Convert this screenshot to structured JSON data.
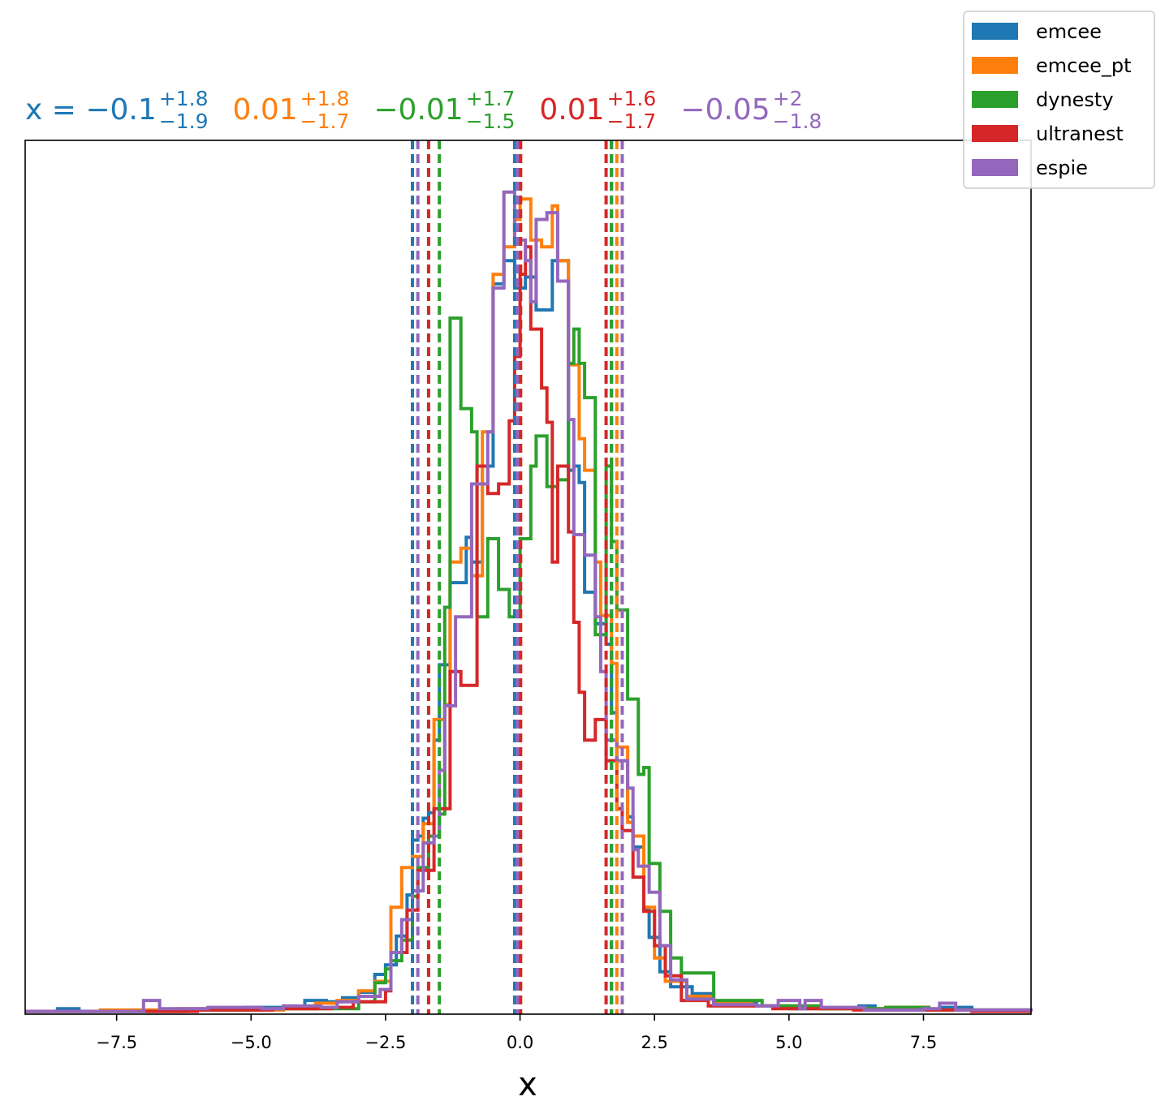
{
  "chart_data": {
    "type": "histogram",
    "xlabel": "x",
    "ylabel": "",
    "xlim": [
      -9.2,
      9.5
    ],
    "xticks": [
      -7.5,
      -5.0,
      -2.5,
      0.0,
      2.5,
      5.0,
      7.5
    ],
    "xtick_labels": [
      "−7.5",
      "−5.0",
      "−2.5",
      "0.0",
      "2.5",
      "5.0",
      "7.5"
    ],
    "y_ticks_shown": false,
    "grid": false,
    "legend_position": "top-right",
    "summary": [
      {
        "series": "emcee",
        "prefix": "x = ",
        "median": "−0.1",
        "plus": "+1.8",
        "minus": "−1.9"
      },
      {
        "series": "emcee_pt",
        "prefix": "",
        "median": "0.01",
        "plus": "+1.8",
        "minus": "−1.7"
      },
      {
        "series": "dynesty",
        "prefix": "",
        "median": "−0.01",
        "plus": "+1.7",
        "minus": "−1.5"
      },
      {
        "series": "ultranest",
        "prefix": "",
        "median": "0.01",
        "plus": "+1.6",
        "minus": "−1.7"
      },
      {
        "series": "espie",
        "prefix": "",
        "median": "−0.05",
        "plus": "+2",
        "minus": "−1.8"
      }
    ],
    "series": [
      {
        "name": "emcee",
        "color": "#1f77b4",
        "quantile_lines": [
          -2.0,
          -0.1,
          1.7
        ],
        "steps": [
          [
            -9.2,
            0.2
          ],
          [
            -8.6,
            0.4
          ],
          [
            -8.2,
            0.2
          ],
          [
            -6.3,
            0.3
          ],
          [
            -5.1,
            0.5
          ],
          [
            -4.0,
            1.0
          ],
          [
            -3.6,
            0.9
          ],
          [
            -3.3,
            1.2
          ],
          [
            -3.0,
            1.6
          ],
          [
            -2.7,
            2.9
          ],
          [
            -2.5,
            3.6
          ],
          [
            -2.3,
            5.7
          ],
          [
            -2.1,
            8.7
          ],
          [
            -2.0,
            12.7
          ],
          [
            -1.9,
            13.0
          ],
          [
            -1.8,
            14.3
          ],
          [
            -1.7,
            14.7
          ],
          [
            -1.6,
            20.0
          ],
          [
            -1.5,
            25.5
          ],
          [
            -1.3,
            31.5
          ],
          [
            -1.0,
            34.8
          ],
          [
            -0.9,
            33.0
          ],
          [
            -0.7,
            40.0
          ],
          [
            -0.5,
            53.3
          ],
          [
            -0.3,
            55.0
          ],
          [
            -0.1,
            53.0
          ],
          [
            0.1,
            53.8
          ],
          [
            0.3,
            51.4
          ],
          [
            0.6,
            55.0
          ],
          [
            0.9,
            39.7
          ],
          [
            1.0,
            40.0
          ],
          [
            1.1,
            38.8
          ],
          [
            1.2,
            30.8
          ],
          [
            1.4,
            28.5
          ],
          [
            1.6,
            27.0
          ],
          [
            1.7,
            22.0
          ],
          [
            1.8,
            18.5
          ],
          [
            2.0,
            14.4
          ],
          [
            2.1,
            12.2
          ],
          [
            2.3,
            7.6
          ],
          [
            2.4,
            5.6
          ],
          [
            2.6,
            3.1
          ],
          [
            2.8,
            2.0
          ],
          [
            3.2,
            1.5
          ],
          [
            3.6,
            0.9
          ],
          [
            4.4,
            0.6
          ],
          [
            5.0,
            0.4
          ],
          [
            6.3,
            0.6
          ],
          [
            6.6,
            0.3
          ],
          [
            7.8,
            0.5
          ],
          [
            8.4,
            0.3
          ],
          [
            9.5,
            0.3
          ]
        ]
      },
      {
        "name": "emcee_pt",
        "color": "#ff7f0e",
        "quantile_lines": [
          -1.7,
          0.01,
          1.8
        ],
        "steps": [
          [
            -9.2,
            0.2
          ],
          [
            -7.8,
            0.3
          ],
          [
            -6.4,
            0.4
          ],
          [
            -5.8,
            0.3
          ],
          [
            -4.4,
            0.4
          ],
          [
            -3.8,
            0.8
          ],
          [
            -3.4,
            1.0
          ],
          [
            -3.0,
            1.7
          ],
          [
            -2.7,
            2.4
          ],
          [
            -2.4,
            7.8
          ],
          [
            -2.2,
            10.7
          ],
          [
            -2.0,
            11.5
          ],
          [
            -1.8,
            13.9
          ],
          [
            -1.6,
            21.5
          ],
          [
            -1.4,
            22.6
          ],
          [
            -1.3,
            33.0
          ],
          [
            -1.1,
            34.0
          ],
          [
            -0.9,
            32.0
          ],
          [
            -0.7,
            42.5
          ],
          [
            -0.5,
            54.0
          ],
          [
            -0.3,
            56.0
          ],
          [
            -0.1,
            58.0
          ],
          [
            0.0,
            59.5
          ],
          [
            0.2,
            56.5
          ],
          [
            0.4,
            56.0
          ],
          [
            0.6,
            59.0
          ],
          [
            0.7,
            55.0
          ],
          [
            0.9,
            47.4
          ],
          [
            1.1,
            42.0
          ],
          [
            1.2,
            39.7
          ],
          [
            1.4,
            33.0
          ],
          [
            1.5,
            29.1
          ],
          [
            1.7,
            25.6
          ],
          [
            1.8,
            19.5
          ],
          [
            2.0,
            14.0
          ],
          [
            2.1,
            13.0
          ],
          [
            2.3,
            7.8
          ],
          [
            2.5,
            4.1
          ],
          [
            2.7,
            2.4
          ],
          [
            3.1,
            1.3
          ],
          [
            3.6,
            0.8
          ],
          [
            4.3,
            0.6
          ],
          [
            5.6,
            0.4
          ],
          [
            6.8,
            0.5
          ],
          [
            7.6,
            0.3
          ],
          [
            9.5,
            0.3
          ]
        ]
      },
      {
        "name": "dynesty",
        "color": "#2ca02c",
        "quantile_lines": [
          -1.5,
          -0.01,
          1.7
        ],
        "steps": [
          [
            -9.2,
            0.2
          ],
          [
            -6.2,
            0.3
          ],
          [
            -4.8,
            0.4
          ],
          [
            -3.0,
            0.9
          ],
          [
            -2.7,
            2.3
          ],
          [
            -2.5,
            3.3
          ],
          [
            -2.4,
            3.9
          ],
          [
            -2.2,
            5.4
          ],
          [
            -2.0,
            8.6
          ],
          [
            -1.9,
            10.7
          ],
          [
            -1.7,
            13.0
          ],
          [
            -1.5,
            14.6
          ],
          [
            -1.4,
            29.7
          ],
          [
            -1.3,
            50.8
          ],
          [
            -1.1,
            44.2
          ],
          [
            -0.9,
            42.5
          ],
          [
            -0.8,
            29.0
          ],
          [
            -0.6,
            34.7
          ],
          [
            -0.4,
            31.0
          ],
          [
            -0.2,
            29.0
          ],
          [
            0.0,
            34.7
          ],
          [
            0.2,
            40.0
          ],
          [
            0.3,
            42.2
          ],
          [
            0.5,
            38.5
          ],
          [
            0.7,
            39.0
          ],
          [
            0.8,
            39.0
          ],
          [
            0.9,
            47.5
          ],
          [
            1.0,
            50.0
          ],
          [
            1.1,
            47.5
          ],
          [
            1.2,
            45.0
          ],
          [
            1.4,
            27.7
          ],
          [
            1.6,
            40.0
          ],
          [
            1.7,
            34.5
          ],
          [
            1.8,
            29.5
          ],
          [
            2.0,
            23.0
          ],
          [
            2.2,
            17.5
          ],
          [
            2.3,
            18.0
          ],
          [
            2.4,
            11.0
          ],
          [
            2.6,
            7.5
          ],
          [
            2.8,
            4.1
          ],
          [
            3.0,
            3.0
          ],
          [
            3.6,
            1.0
          ],
          [
            4.5,
            0.6
          ],
          [
            5.6,
            0.4
          ],
          [
            6.8,
            0.5
          ],
          [
            7.6,
            0.3
          ],
          [
            9.5,
            0.3
          ]
        ]
      },
      {
        "name": "ultranest",
        "color": "#d62728",
        "quantile_lines": [
          -1.7,
          0.01,
          1.6
        ],
        "steps": [
          [
            -9.2,
            0.2
          ],
          [
            -6.0,
            0.3
          ],
          [
            -4.6,
            0.4
          ],
          [
            -3.5,
            0.5
          ],
          [
            -3.1,
            0.9
          ],
          [
            -2.5,
            1.7
          ],
          [
            -2.4,
            4.5
          ],
          [
            -2.1,
            7.6
          ],
          [
            -1.9,
            10.5
          ],
          [
            -1.6,
            15.0
          ],
          [
            -1.3,
            25.0
          ],
          [
            -1.1,
            24.0
          ],
          [
            -0.8,
            40.0
          ],
          [
            -0.6,
            38.0
          ],
          [
            -0.4,
            38.7
          ],
          [
            -0.2,
            43.3
          ],
          [
            -0.1,
            48.0
          ],
          [
            0.0,
            54.0
          ],
          [
            0.1,
            56.0
          ],
          [
            0.2,
            50.0
          ],
          [
            0.4,
            45.7
          ],
          [
            0.5,
            43.2
          ],
          [
            0.6,
            33.0
          ],
          [
            0.7,
            40.0
          ],
          [
            0.9,
            35.2
          ],
          [
            1.0,
            28.6
          ],
          [
            1.1,
            23.5
          ],
          [
            1.2,
            20.0
          ],
          [
            1.4,
            21.5
          ],
          [
            1.6,
            18.5
          ],
          [
            1.8,
            15.0
          ],
          [
            1.9,
            13.4
          ],
          [
            2.1,
            10.0
          ],
          [
            2.3,
            7.5
          ],
          [
            2.5,
            5.0
          ],
          [
            2.7,
            2.8
          ],
          [
            3.0,
            1.0
          ],
          [
            3.5,
            0.6
          ],
          [
            4.7,
            0.4
          ],
          [
            6.2,
            0.3
          ],
          [
            7.9,
            0.3
          ],
          [
            8.4,
            0.2
          ],
          [
            9.5,
            0.2
          ]
        ]
      },
      {
        "name": "espie",
        "color": "#9467bd",
        "quantile_lines": [
          -1.9,
          -0.05,
          1.9
        ],
        "steps": [
          [
            -9.2,
            0.2
          ],
          [
            -7.0,
            1.0
          ],
          [
            -6.7,
            0.4
          ],
          [
            -5.8,
            0.5
          ],
          [
            -4.8,
            0.4
          ],
          [
            -4.4,
            0.6
          ],
          [
            -3.7,
            0.5
          ],
          [
            -3.4,
            0.9
          ],
          [
            -3.0,
            1.3
          ],
          [
            -2.6,
            1.8
          ],
          [
            -2.4,
            4.5
          ],
          [
            -2.2,
            6.9
          ],
          [
            -2.0,
            9.0
          ],
          [
            -1.8,
            12.5
          ],
          [
            -1.6,
            13.0
          ],
          [
            -1.5,
            17.8
          ],
          [
            -1.4,
            22.5
          ],
          [
            -1.2,
            29.0
          ],
          [
            -0.9,
            38.7
          ],
          [
            -0.6,
            42.5
          ],
          [
            -0.5,
            53.0
          ],
          [
            -0.3,
            60.0
          ],
          [
            -0.1,
            56.5
          ],
          [
            0.1,
            55.0
          ],
          [
            0.2,
            52.0
          ],
          [
            0.3,
            58.0
          ],
          [
            0.5,
            58.5
          ],
          [
            0.7,
            53.5
          ],
          [
            0.9,
            43.4
          ],
          [
            1.0,
            35.0
          ],
          [
            1.2,
            33.5
          ],
          [
            1.4,
            29.0
          ],
          [
            1.5,
            25.0
          ],
          [
            1.6,
            20.0
          ],
          [
            1.8,
            18.5
          ],
          [
            2.0,
            16.5
          ],
          [
            2.1,
            12.0
          ],
          [
            2.2,
            10.8
          ],
          [
            2.4,
            8.9
          ],
          [
            2.6,
            5.0
          ],
          [
            2.8,
            2.5
          ],
          [
            3.1,
            1.1
          ],
          [
            3.6,
            0.7
          ],
          [
            4.4,
            0.6
          ],
          [
            4.8,
            1.0
          ],
          [
            5.2,
            0.4
          ],
          [
            5.3,
            1.0
          ],
          [
            5.6,
            0.5
          ],
          [
            6.4,
            0.3
          ],
          [
            7.5,
            0.4
          ],
          [
            7.8,
            0.8
          ],
          [
            8.1,
            0.3
          ],
          [
            9.5,
            0.2
          ]
        ]
      }
    ]
  }
}
